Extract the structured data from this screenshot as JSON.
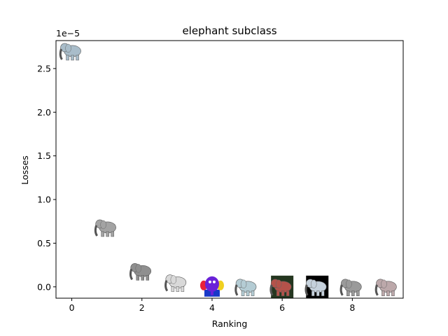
{
  "chart_data": {
    "type": "scatter",
    "title": "elephant subclass",
    "xlabel": "Ranking",
    "ylabel": "Losses",
    "y_scale_note": "1e−5",
    "xlim": [
      -0.45,
      9.45
    ],
    "ylim": [
      -0.13,
      2.82
    ],
    "xticks": [
      0,
      2,
      4,
      6,
      8
    ],
    "xtick_labels": [
      "0",
      "2",
      "4",
      "6",
      "8"
    ],
    "yticks": [
      0.0,
      0.5,
      1.0,
      1.5,
      2.0,
      2.5
    ],
    "ytick_labels": [
      "0.0",
      "0.5",
      "1.0",
      "1.5",
      "2.0",
      "2.5"
    ],
    "grid": false,
    "x": [
      0,
      1,
      2,
      3,
      4,
      5,
      6,
      7,
      8,
      9
    ],
    "y": [
      2.7,
      0.68,
      0.18,
      0.05,
      0.0,
      0.0,
      0.0,
      0.0,
      0.0,
      0.0
    ],
    "markers": [
      {
        "icon": "elephant-icon",
        "body": "#a9bdca",
        "bg": ""
      },
      {
        "icon": "elephant-icon",
        "body": "#a3a3a3",
        "bg": ""
      },
      {
        "icon": "elephant-icon",
        "body": "#8f8f8f",
        "bg": ""
      },
      {
        "icon": "elephant-icon",
        "body": "#d9d9d9",
        "bg": ""
      },
      {
        "icon": "cartoon-elephant-icon",
        "body": "#6a22d8",
        "bg": ""
      },
      {
        "icon": "elephant-icon",
        "body": "#b4ccd4",
        "bg": ""
      },
      {
        "icon": "elephant-photo-icon",
        "body": "#b4524a",
        "bg": "#24361f"
      },
      {
        "icon": "elephant-icon",
        "body": "#c5d1dc",
        "bg": "#000000"
      },
      {
        "icon": "elephant-icon",
        "body": "#9a9a9a",
        "bg": ""
      },
      {
        "icon": "elephant-icon",
        "body": "#bca8aa",
        "bg": ""
      }
    ]
  }
}
